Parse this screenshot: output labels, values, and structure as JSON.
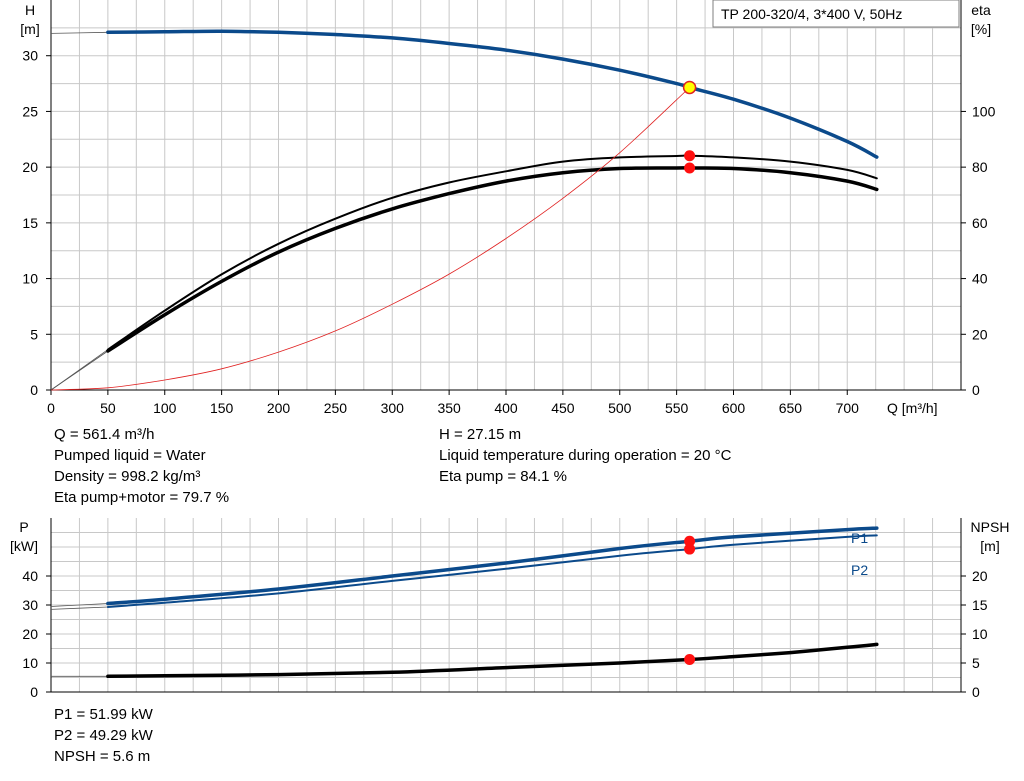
{
  "chart_data": [
    {
      "type": "line",
      "title": "TP 200-320/4, 3*400 V, 50Hz",
      "xlabel": "Q [m³/h]",
      "ylabel": [
        "H",
        "[m]"
      ],
      "ylabel_right": [
        "eta",
        "[%]"
      ],
      "xlim": [
        0,
        800
      ],
      "ylim": [
        0,
        35
      ],
      "ylim_right": [
        0,
        140
      ],
      "x_ticks": [
        "0",
        "50",
        "100",
        "150",
        "200",
        "250",
        "300",
        "350",
        "400",
        "450",
        "500",
        "550",
        "600",
        "650",
        "700"
      ],
      "y_ticks": [
        "0",
        "5",
        "10",
        "15",
        "20",
        "25",
        "30"
      ],
      "y_ticks_right": [
        "0",
        "20",
        "40",
        "60",
        "80",
        "100"
      ],
      "grid": true,
      "series": [
        {
          "role": "H",
          "axis": "left",
          "color": "#0b4a8b",
          "x": [
            0,
            50,
            100,
            150,
            200,
            250,
            300,
            350,
            400,
            450,
            500,
            550,
            561.4,
            600,
            650,
            700,
            726
          ],
          "y": [
            32.0,
            32.1,
            32.15,
            32.2,
            32.1,
            31.9,
            31.6,
            31.1,
            30.5,
            29.7,
            28.7,
            27.5,
            27.15,
            26.1,
            24.4,
            22.3,
            20.9
          ]
        },
        {
          "role": "Eta pump",
          "axis": "right",
          "color": "#000000",
          "x": [
            0,
            50,
            100,
            150,
            200,
            250,
            300,
            350,
            400,
            450,
            500,
            550,
            561.4,
            600,
            650,
            700,
            726
          ],
          "y": [
            0,
            14.5,
            28.5,
            41.5,
            52.5,
            61.5,
            69,
            74.5,
            78.5,
            82,
            83.5,
            84,
            84.1,
            83.5,
            82,
            79,
            76
          ]
        },
        {
          "role": "Eta pump+motor",
          "axis": "right",
          "color": "#000000",
          "x": [
            0,
            50,
            100,
            150,
            200,
            250,
            300,
            350,
            400,
            450,
            500,
            550,
            561.4,
            600,
            650,
            700,
            726
          ],
          "y": [
            0,
            14,
            27,
            39,
            49.5,
            58,
            65,
            70.5,
            75,
            78,
            79.5,
            79.7,
            79.7,
            79.5,
            78,
            75,
            72
          ]
        },
        {
          "role": "System curve",
          "axis": "left",
          "color": "#e02020",
          "x": [
            0,
            50,
            100,
            150,
            200,
            250,
            300,
            350,
            400,
            450,
            500,
            561.4
          ],
          "y": [
            0,
            0.2,
            0.9,
            1.9,
            3.4,
            5.3,
            7.7,
            10.4,
            13.6,
            17.2,
            21.3,
            27.15
          ]
        }
      ],
      "operating_point": {
        "q": 561.4,
        "h": 27.15,
        "eta_pump": 84.1,
        "eta_total": 79.7
      }
    },
    {
      "type": "line",
      "ylabel": [
        "P",
        "[kW]"
      ],
      "ylabel_right": [
        "NPSH",
        "[m]"
      ],
      "xlim": [
        0,
        800
      ],
      "ylim": [
        0,
        60
      ],
      "ylim_right": [
        0,
        30
      ],
      "y_ticks": [
        "0",
        "10",
        "20",
        "30",
        "40"
      ],
      "y_ticks_right": [
        "0",
        "5",
        "10",
        "15",
        "20"
      ],
      "grid": true,
      "series": [
        {
          "name": "P1",
          "axis": "left",
          "color": "#0b4a8b",
          "x": [
            0,
            50,
            100,
            200,
            300,
            400,
            500,
            561.4,
            600,
            700,
            726
          ],
          "y": [
            29.5,
            30.5,
            32,
            35.5,
            40,
            44.5,
            49.5,
            52,
            53.5,
            56,
            56.5
          ]
        },
        {
          "name": "P2",
          "axis": "left",
          "color": "#0b4a8b",
          "x": [
            0,
            50,
            100,
            200,
            300,
            400,
            500,
            561.4,
            600,
            700,
            726
          ],
          "y": [
            28.5,
            29.3,
            30.8,
            34,
            38.3,
            42.5,
            47,
            49.29,
            50.8,
            53.5,
            54
          ]
        },
        {
          "role": "NPSH",
          "axis": "right",
          "color": "#000000",
          "x": [
            0,
            50,
            100,
            200,
            300,
            400,
            500,
            561.4,
            600,
            650,
            700,
            726
          ],
          "y": [
            2.7,
            2.7,
            2.8,
            3,
            3.4,
            4.2,
            5,
            5.6,
            6.1,
            6.8,
            7.7,
            8.2
          ]
        }
      ],
      "operating_point": {
        "q": 561.4,
        "p1": 51.99,
        "p2": 49.29,
        "npsh": 5.6
      }
    }
  ],
  "info": {
    "q": "Q = 561.4 m³/h",
    "pumped_liquid": "Pumped liquid = Water",
    "density": "Density = 998.2 kg/m³",
    "eta_total": "Eta pump+motor = 79.7 %",
    "h": "H = 27.15 m",
    "liquid_temp": "Liquid temperature during operation = 20 °C",
    "eta_pump": "Eta pump = 84.1 %",
    "p1": "P1 = 51.99 kW",
    "p2": "P2 = 49.29 kW",
    "npsh": "NPSH = 5.6 m"
  }
}
